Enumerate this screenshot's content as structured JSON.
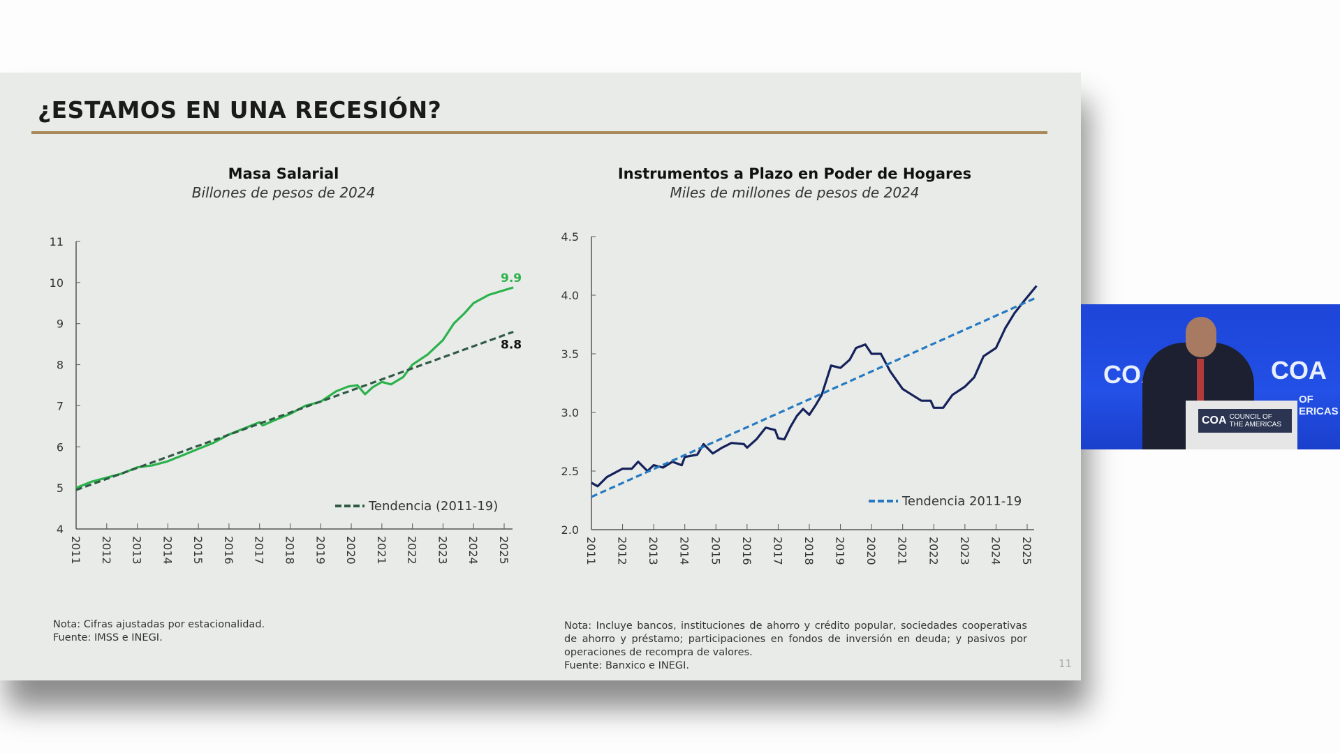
{
  "slide": {
    "title": "¿ESTAMOS EN UNA RECESIÓN?",
    "page_number": "11",
    "accent_color": "#a8895a"
  },
  "chart_data": [
    {
      "type": "line",
      "title": "Masa Salarial",
      "subtitle": "Billones de pesos de 2024",
      "ylim": [
        4,
        11
      ],
      "yticks": [
        "4",
        "5",
        "6",
        "7",
        "8",
        "9",
        "10",
        "11"
      ],
      "xticks": [
        "2011",
        "2012",
        "2013",
        "2014",
        "2015",
        "2016",
        "2017",
        "2018",
        "2019",
        "2020",
        "2021",
        "2022",
        "2023",
        "2024",
        "2025"
      ],
      "grid": false,
      "legend_placement": "bottom-right",
      "series": [
        {
          "color": "#2bb24c",
          "style": "solid",
          "points": [
            [
              2011,
              5.0
            ],
            [
              2011.5,
              5.15
            ],
            [
              2012,
              5.25
            ],
            [
              2012.5,
              5.35
            ],
            [
              2013,
              5.5
            ],
            [
              2013.5,
              5.55
            ],
            [
              2014,
              5.65
            ],
            [
              2014.5,
              5.8
            ],
            [
              2015,
              5.95
            ],
            [
              2015.5,
              6.1
            ],
            [
              2016,
              6.3
            ],
            [
              2016.5,
              6.45
            ],
            [
              2017,
              6.6
            ],
            [
              2017.1,
              6.52
            ],
            [
              2017.5,
              6.65
            ],
            [
              2018,
              6.8
            ],
            [
              2018.5,
              7.0
            ],
            [
              2019,
              7.1
            ],
            [
              2019.5,
              7.35
            ],
            [
              2019.9,
              7.47
            ],
            [
              2020.2,
              7.5
            ],
            [
              2020.45,
              7.28
            ],
            [
              2020.7,
              7.45
            ],
            [
              2021,
              7.58
            ],
            [
              2021.3,
              7.52
            ],
            [
              2021.7,
              7.7
            ],
            [
              2022,
              8.0
            ],
            [
              2022.5,
              8.25
            ],
            [
              2023,
              8.6
            ],
            [
              2023.35,
              9.0
            ],
            [
              2023.7,
              9.25
            ],
            [
              2024,
              9.5
            ],
            [
              2024.5,
              9.7
            ],
            [
              2025.3,
              9.88
            ]
          ],
          "end_label": "9.9"
        },
        {
          "name": "Tendencia (2011-19)",
          "color": "#2f5a45",
          "style": "dashed",
          "points": [
            [
              2011,
              4.95
            ],
            [
              2025.3,
              8.8
            ]
          ],
          "end_label": "8.8"
        }
      ],
      "note": "Nota: Cifras ajustadas por estacionalidad.",
      "source": "Fuente: IMSS e INEGI."
    },
    {
      "type": "line",
      "title": "Instrumentos a Plazo en Poder de Hogares",
      "subtitle": "Miles de millones de pesos de 2024",
      "ylim": [
        2.0,
        4.5
      ],
      "yticks": [
        "2.0",
        "2.5",
        "3.0",
        "3.5",
        "4.0",
        "4.5"
      ],
      "xticks": [
        "2011",
        "2012",
        "2013",
        "2014",
        "2015",
        "2016",
        "2017",
        "2018",
        "2019",
        "2020",
        "2021",
        "2022",
        "2023",
        "2024",
        "2025"
      ],
      "grid": false,
      "legend_placement": "bottom-right",
      "series": [
        {
          "color": "#14215a",
          "style": "solid",
          "points": [
            [
              2011,
              2.4
            ],
            [
              2011.2,
              2.37
            ],
            [
              2011.5,
              2.45
            ],
            [
              2012,
              2.52
            ],
            [
              2012.3,
              2.52
            ],
            [
              2012.5,
              2.58
            ],
            [
              2012.8,
              2.5
            ],
            [
              2013,
              2.55
            ],
            [
              2013.3,
              2.53
            ],
            [
              2013.6,
              2.58
            ],
            [
              2013.9,
              2.55
            ],
            [
              2014,
              2.62
            ],
            [
              2014.4,
              2.64
            ],
            [
              2014.6,
              2.73
            ],
            [
              2014.9,
              2.65
            ],
            [
              2015.2,
              2.7
            ],
            [
              2015.5,
              2.74
            ],
            [
              2015.9,
              2.73
            ],
            [
              2016,
              2.7
            ],
            [
              2016.3,
              2.77
            ],
            [
              2016.6,
              2.87
            ],
            [
              2016.9,
              2.85
            ],
            [
              2017,
              2.78
            ],
            [
              2017.2,
              2.77
            ],
            [
              2017.4,
              2.88
            ],
            [
              2017.6,
              2.97
            ],
            [
              2017.8,
              3.03
            ],
            [
              2018,
              2.98
            ],
            [
              2018.2,
              3.06
            ],
            [
              2018.4,
              3.15
            ],
            [
              2018.7,
              3.4
            ],
            [
              2019,
              3.38
            ],
            [
              2019.3,
              3.45
            ],
            [
              2019.5,
              3.55
            ],
            [
              2019.8,
              3.58
            ],
            [
              2020,
              3.5
            ],
            [
              2020.3,
              3.5
            ],
            [
              2020.6,
              3.35
            ],
            [
              2021,
              3.2
            ],
            [
              2021.3,
              3.15
            ],
            [
              2021.6,
              3.1
            ],
            [
              2021.9,
              3.1
            ],
            [
              2022,
              3.04
            ],
            [
              2022.3,
              3.04
            ],
            [
              2022.6,
              3.15
            ],
            [
              2023,
              3.22
            ],
            [
              2023.3,
              3.3
            ],
            [
              2023.6,
              3.48
            ],
            [
              2024,
              3.55
            ],
            [
              2024.3,
              3.72
            ],
            [
              2024.6,
              3.85
            ],
            [
              2024.9,
              3.95
            ],
            [
              2025.3,
              4.08
            ]
          ]
        },
        {
          "name": "Tendencia 2011-19",
          "color": "#2479c0",
          "style": "dashed",
          "points": [
            [
              2011,
              2.28
            ],
            [
              2025.3,
              3.98
            ]
          ]
        }
      ],
      "note": "Nota: Incluye bancos, instituciones de ahorro y crédito popular, sociedades cooperativas de ahorro y préstamo; participaciones en fondos de inversión en deuda; y pasivos por operaciones de recompra de valores.",
      "source": "Fuente: Banxico e INEGI."
    }
  ],
  "video": {
    "backdrop_logo": "COA",
    "backdrop_text_right": "COA",
    "podium_logo": "COA",
    "podium_text": "COUNCIL OF THE AMERICAS",
    "backdrop_partial_text": "OF ERICAS",
    "background_color": "#2350e6"
  }
}
